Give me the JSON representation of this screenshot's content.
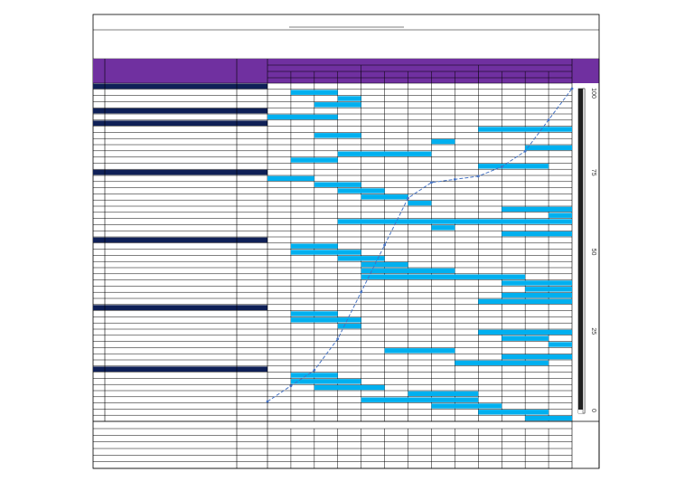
{
  "colors": {
    "header_purple": "#7030a0",
    "section_navy": "#0f2057",
    "bar_blue": "#00b0f0",
    "line_blue": "#4472c4",
    "grid_line": "#000000",
    "scale_dark": "#222222"
  },
  "scale_ticks": [
    "100",
    "75",
    "50",
    "25",
    "0"
  ],
  "chart_data": {
    "type": "table",
    "week_columns": 13,
    "sections": [
      {
        "rows": [
          [
            1,
            3
          ],
          [
            3,
            4
          ],
          [
            2,
            4
          ]
        ]
      },
      {
        "rows": [
          [
            0,
            3
          ]
        ]
      },
      {
        "rows": [
          [
            9,
            13
          ],
          [
            2,
            4
          ],
          [
            7,
            8
          ],
          [
            11,
            13
          ],
          [
            3,
            7
          ],
          [
            1,
            3
          ],
          [
            9,
            12
          ]
        ]
      },
      {
        "rows": [
          [
            0,
            2
          ],
          [
            2,
            4
          ],
          [
            3,
            5
          ],
          [
            4,
            6
          ],
          [
            6,
            7
          ],
          [
            10,
            13
          ],
          [
            12,
            13
          ],
          [
            3,
            13
          ],
          [
            7,
            8
          ],
          [
            10,
            13
          ]
        ]
      },
      {
        "rows": [
          [
            1,
            3
          ],
          [
            1,
            4
          ],
          [
            3,
            5
          ],
          [
            4,
            6
          ],
          [
            4,
            8
          ],
          [
            4,
            11
          ],
          [
            10,
            13
          ],
          [
            11,
            13
          ],
          [
            10,
            13
          ],
          [
            9,
            13
          ]
        ]
      },
      {
        "rows": [
          [
            1,
            3
          ],
          [
            1,
            4
          ],
          [
            3,
            4
          ],
          [
            9,
            13
          ],
          [
            10,
            12
          ],
          [
            12,
            13
          ],
          [
            5,
            8
          ],
          [
            10,
            13
          ],
          [
            8,
            12
          ]
        ]
      },
      {
        "rows": [
          [
            1,
            3
          ],
          [
            1,
            4
          ],
          [
            2,
            5
          ],
          [
            6,
            9
          ],
          [
            4,
            9
          ],
          [
            7,
            10
          ],
          [
            9,
            12
          ],
          [
            11,
            13
          ]
        ]
      }
    ],
    "s_curve_percent": [
      0,
      5,
      10,
      20,
      35,
      50,
      65,
      70,
      71,
      72,
      75,
      80,
      90,
      100
    ]
  }
}
